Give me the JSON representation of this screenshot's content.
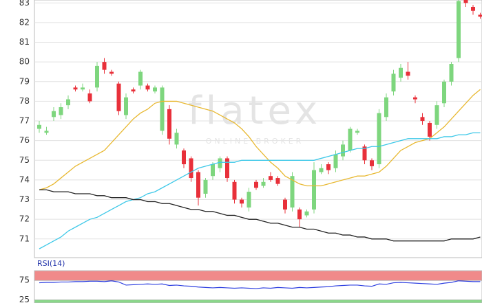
{
  "chart_data": [
    {
      "type": "candlestick",
      "watermark": {
        "logo": "flatex",
        "tagline": "ONLINE BROKER"
      },
      "open": [
        76.6,
        76.4,
        77.2,
        77.3,
        77.8,
        78.7,
        78.6,
        78.4,
        78.7,
        80.0,
        79.5,
        78.9,
        77.3,
        78.6,
        78.8,
        78.8,
        78.5,
        76.5,
        77.6,
        75.8,
        75.5,
        75.1,
        74.4,
        73.3,
        74.2,
        74.6,
        75.1,
        73.9,
        73.0,
        72.6,
        73.9,
        73.7,
        74.2,
        74.1,
        73.0,
        72.6,
        72.5,
        72.2,
        72.5,
        74.4,
        74.8,
        74.6,
        75.2,
        75.5,
        76.4,
        75.7,
        75.0,
        74.8,
        77.2,
        78.5,
        79.2,
        79.5,
        78.2,
        77.2,
        76.9,
        76.8,
        77.9,
        79.0,
        80.2,
        83.2,
        82.8,
        82.4
      ],
      "high": [
        77.0,
        76.7,
        77.7,
        77.9,
        78.3,
        78.8,
        78.9,
        78.6,
        80.0,
        80.2,
        79.6,
        79.0,
        78.4,
        78.7,
        79.6,
        78.9,
        78.8,
        78.8,
        77.8,
        76.6,
        75.6,
        75.2,
        74.5,
        74.1,
        74.9,
        75.2,
        75.2,
        74.0,
        73.1,
        73.6,
        74.0,
        74.1,
        74.4,
        74.2,
        73.1,
        74.4,
        72.6,
        72.5,
        74.9,
        74.8,
        74.9,
        75.5,
        76.0,
        76.7,
        76.6,
        75.8,
        75.1,
        77.6,
        78.4,
        79.6,
        79.9,
        80.0,
        78.3,
        77.4,
        77.0,
        78.0,
        79.1,
        80.0,
        83.3,
        83.4,
        82.9,
        82.5
      ],
      "low": [
        76.4,
        76.3,
        77.0,
        77.1,
        77.6,
        78.5,
        78.5,
        77.9,
        78.5,
        79.4,
        79.3,
        77.3,
        77.1,
        78.4,
        78.6,
        78.5,
        78.4,
        76.3,
        75.8,
        75.6,
        74.6,
        73.9,
        72.7,
        73.1,
        74.0,
        74.4,
        73.9,
        72.8,
        72.6,
        72.4,
        73.5,
        73.6,
        73.9,
        73.7,
        72.3,
        72.4,
        71.6,
        72.1,
        72.3,
        74.3,
        74.3,
        74.4,
        75.0,
        75.4,
        76.3,
        74.8,
        74.5,
        74.6,
        77.0,
        78.3,
        79.0,
        79.1,
        77.9,
        76.8,
        76.0,
        76.6,
        77.7,
        78.8,
        80.0,
        82.8,
        82.4,
        82.2
      ],
      "close": [
        76.8,
        76.5,
        77.5,
        77.7,
        78.1,
        78.6,
        78.7,
        78.0,
        79.8,
        79.6,
        79.4,
        77.5,
        78.2,
        78.5,
        79.5,
        78.6,
        78.7,
        78.7,
        76.1,
        76.4,
        74.8,
        74.1,
        73.1,
        74.0,
        74.8,
        75.1,
        74.1,
        73.0,
        72.8,
        73.4,
        73.6,
        73.9,
        74.0,
        73.8,
        72.5,
        74.2,
        72.0,
        72.4,
        74.5,
        74.6,
        74.5,
        75.3,
        75.8,
        76.6,
        76.5,
        75.0,
        74.7,
        77.4,
        78.2,
        79.4,
        79.7,
        79.3,
        78.1,
        77.0,
        76.2,
        77.8,
        79.0,
        79.9,
        83.1,
        83.0,
        82.6,
        82.3
      ],
      "up_color": "#7ed67e",
      "down_color": "#e8303a",
      "overlays": [
        {
          "color": "#e8b830",
          "values": [
            73.5,
            73.6,
            73.8,
            74.1,
            74.4,
            74.7,
            74.9,
            75.1,
            75.3,
            75.5,
            75.9,
            76.3,
            76.7,
            77.1,
            77.4,
            77.6,
            77.9,
            78.0,
            78.0,
            78.0,
            77.9,
            77.8,
            77.7,
            77.6,
            77.5,
            77.3,
            77.1,
            76.9,
            76.6,
            76.2,
            75.7,
            75.3,
            74.9,
            74.6,
            74.2,
            74.0,
            73.8,
            73.7,
            73.7,
            73.7,
            73.8,
            73.9,
            74.0,
            74.1,
            74.2,
            74.2,
            74.3,
            74.4,
            74.7,
            75.1,
            75.5,
            75.7,
            75.9,
            76.0,
            76.1,
            76.4,
            76.7,
            77.1,
            77.5,
            77.9,
            78.3,
            78.6
          ]
        },
        {
          "color": "#3cc8e8",
          "values": [
            70.5,
            70.7,
            70.9,
            71.1,
            71.4,
            71.6,
            71.8,
            72.0,
            72.1,
            72.3,
            72.5,
            72.7,
            72.9,
            73.0,
            73.1,
            73.3,
            73.4,
            73.6,
            73.8,
            74.0,
            74.2,
            74.4,
            74.6,
            74.7,
            74.8,
            74.9,
            74.9,
            74.9,
            75.0,
            75.0,
            75.0,
            75.0,
            75.0,
            75.0,
            75.0,
            75.0,
            75.0,
            75.0,
            75.0,
            75.1,
            75.2,
            75.3,
            75.4,
            75.5,
            75.6,
            75.6,
            75.7,
            75.7,
            75.8,
            75.9,
            76.0,
            76.1,
            76.1,
            76.1,
            76.1,
            76.1,
            76.2,
            76.2,
            76.3,
            76.3,
            76.4,
            76.4
          ]
        },
        {
          "color": "#222222",
          "values": [
            73.5,
            73.5,
            73.4,
            73.4,
            73.4,
            73.3,
            73.3,
            73.3,
            73.2,
            73.2,
            73.1,
            73.1,
            73.1,
            73.0,
            73.0,
            72.9,
            72.9,
            72.8,
            72.8,
            72.7,
            72.6,
            72.5,
            72.5,
            72.4,
            72.4,
            72.3,
            72.2,
            72.2,
            72.1,
            72.0,
            72.0,
            71.9,
            71.8,
            71.8,
            71.7,
            71.6,
            71.6,
            71.5,
            71.5,
            71.4,
            71.3,
            71.3,
            71.2,
            71.2,
            71.1,
            71.1,
            71.0,
            71.0,
            71.0,
            70.9,
            70.9,
            70.9,
            70.9,
            70.9,
            70.9,
            70.9,
            70.9,
            71.0,
            71.0,
            71.0,
            71.0,
            71.1
          ]
        }
      ],
      "ylim": [
        70.05,
        83.15
      ],
      "yticks": [
        71,
        72,
        73,
        74,
        75,
        76,
        77,
        78,
        79,
        80,
        81,
        82,
        83
      ],
      "grid": true
    },
    {
      "type": "line",
      "title": "RSI(14)",
      "color": "#2d3fe0",
      "values": [
        69,
        70,
        70,
        71,
        71,
        72,
        72,
        73,
        73,
        72,
        74,
        71,
        63,
        64,
        65,
        66,
        65,
        66,
        62,
        63,
        61,
        60,
        58,
        57,
        56,
        57,
        56,
        55,
        56,
        55,
        54,
        56,
        55,
        57,
        56,
        55,
        57,
        56,
        57,
        58,
        59,
        61,
        62,
        63,
        63,
        61,
        60,
        66,
        65,
        69,
        70,
        69,
        68,
        67,
        66,
        65,
        68,
        70,
        74,
        73,
        72,
        72
      ],
      "ylim": [
        17,
        100
      ],
      "yticks": [
        25,
        75
      ],
      "upper_band_color": "#f08a8a",
      "lower_band_color": "#8ad88a"
    }
  ]
}
